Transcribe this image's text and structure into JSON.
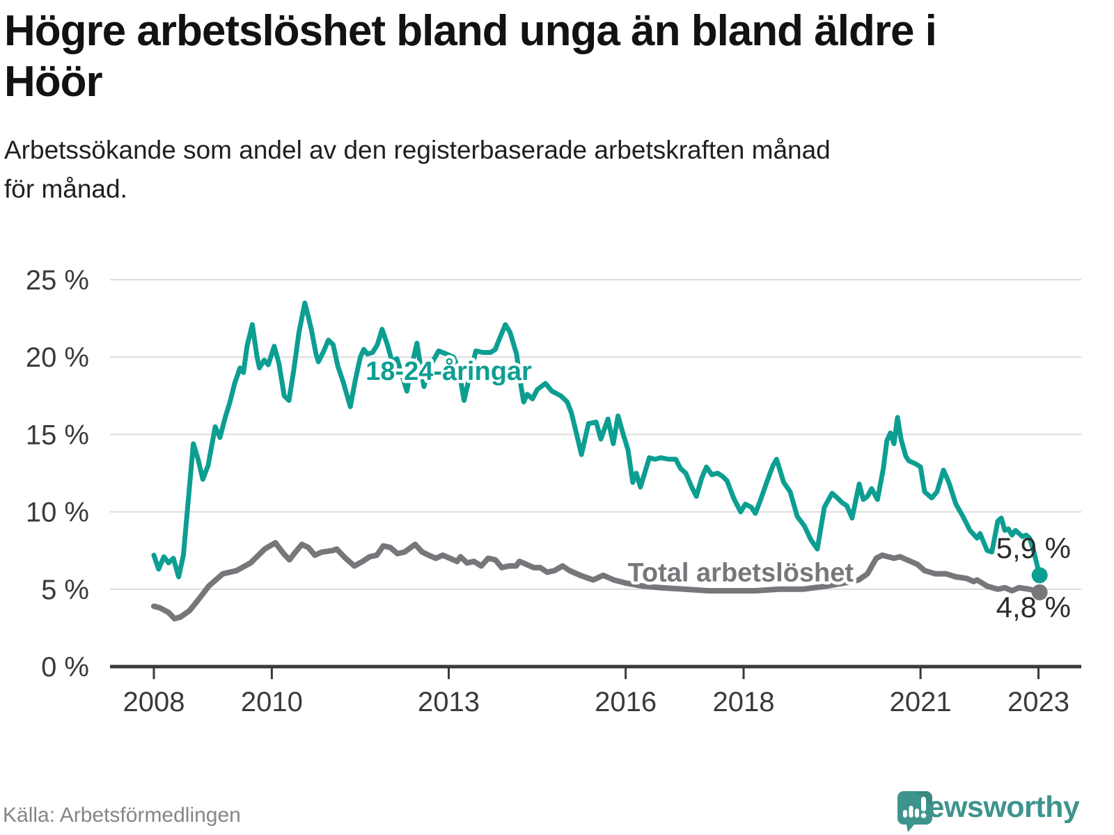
{
  "header": {
    "title_lines": [
      "Högre arbetslöshet bland unga än bland äldre i",
      "Höör"
    ],
    "subtitle_lines": [
      "Arbetssökande som andel av den registerbaserade arbetskraften månad",
      "för månad."
    ]
  },
  "footer": {
    "source": "Källa: Arbetsförmedlingen",
    "brand": "Newsworthy"
  },
  "colors": {
    "youth_line": "#0d9e92",
    "total_line": "#77777b",
    "axis": "#3a3a3a",
    "grid": "#dcdcdc",
    "value_label_text": "#2b2b2b",
    "brand_teal": "#3e938d"
  },
  "chart_data": {
    "type": "line",
    "title": "Högre arbetslöshet bland unga än bland äldre i Höör",
    "xlabel": "",
    "ylabel": "Arbetssökande som andel av den registerbaserade arbetskraften",
    "ylim": [
      0,
      25
    ],
    "xlim": [
      2007.25,
      2023.72
    ],
    "grid": "horizontal",
    "legend_position": "inline-labels",
    "y_ticks": [
      {
        "value": 0,
        "label": "0 %"
      },
      {
        "value": 5,
        "label": "5 %"
      },
      {
        "value": 10,
        "label": "10 %"
      },
      {
        "value": 15,
        "label": "15 %"
      },
      {
        "value": 20,
        "label": "20 %"
      },
      {
        "value": 25,
        "label": "25 %"
      }
    ],
    "x_ticks": [
      {
        "value": 2008,
        "label": "2008"
      },
      {
        "value": 2010,
        "label": "2010"
      },
      {
        "value": 2013,
        "label": "2013"
      },
      {
        "value": 2016,
        "label": "2016"
      },
      {
        "value": 2018,
        "label": "2018"
      },
      {
        "value": 2021,
        "label": "2021"
      },
      {
        "value": 2023,
        "label": "2023"
      }
    ],
    "series": [
      {
        "name": "18-24-åringar",
        "color": "#0d9e92",
        "stroke_width": 7,
        "end_label": "5,9 %",
        "last_value": 5.9,
        "label_pos": {
          "x": 2013.0,
          "y": 19.1
        },
        "points": [
          [
            2008.0,
            7.2
          ],
          [
            2008.08,
            6.3
          ],
          [
            2008.17,
            7.1
          ],
          [
            2008.25,
            6.7
          ],
          [
            2008.33,
            7.0
          ],
          [
            2008.42,
            5.8
          ],
          [
            2008.5,
            7.2
          ],
          [
            2008.58,
            10.6
          ],
          [
            2008.67,
            14.4
          ],
          [
            2008.75,
            13.4
          ],
          [
            2008.83,
            12.1
          ],
          [
            2008.92,
            13.0
          ],
          [
            2009.04,
            15.5
          ],
          [
            2009.12,
            14.8
          ],
          [
            2009.21,
            16.1
          ],
          [
            2009.29,
            17.1
          ],
          [
            2009.37,
            18.3
          ],
          [
            2009.46,
            19.3
          ],
          [
            2009.52,
            19.0
          ],
          [
            2009.58,
            20.7
          ],
          [
            2009.67,
            22.1
          ],
          [
            2009.75,
            20.0
          ],
          [
            2009.79,
            19.3
          ],
          [
            2009.87,
            19.8
          ],
          [
            2009.94,
            19.5
          ],
          [
            2010.04,
            20.7
          ],
          [
            2010.12,
            19.6
          ],
          [
            2010.21,
            17.5
          ],
          [
            2010.29,
            17.2
          ],
          [
            2010.37,
            19.1
          ],
          [
            2010.46,
            21.6
          ],
          [
            2010.56,
            23.5
          ],
          [
            2010.62,
            22.6
          ],
          [
            2010.67,
            21.8
          ],
          [
            2010.75,
            20.2
          ],
          [
            2010.79,
            19.7
          ],
          [
            2010.87,
            20.3
          ],
          [
            2010.96,
            21.1
          ],
          [
            2011.04,
            20.8
          ],
          [
            2011.12,
            19.4
          ],
          [
            2011.21,
            18.4
          ],
          [
            2011.33,
            16.8
          ],
          [
            2011.42,
            18.6
          ],
          [
            2011.5,
            20.0
          ],
          [
            2011.56,
            20.5
          ],
          [
            2011.62,
            20.2
          ],
          [
            2011.71,
            20.3
          ],
          [
            2011.79,
            20.8
          ],
          [
            2011.87,
            21.8
          ],
          [
            2011.96,
            20.8
          ],
          [
            2012.04,
            19.7
          ],
          [
            2012.12,
            19.9
          ],
          [
            2012.21,
            18.8
          ],
          [
            2012.29,
            17.8
          ],
          [
            2012.37,
            19.4
          ],
          [
            2012.46,
            20.9
          ],
          [
            2012.52,
            19.5
          ],
          [
            2012.58,
            18.1
          ],
          [
            2012.67,
            19.3
          ],
          [
            2012.71,
            19.6
          ],
          [
            2012.83,
            20.4
          ],
          [
            2012.96,
            20.2
          ],
          [
            2013.08,
            20.0
          ],
          [
            2013.17,
            19.2
          ],
          [
            2013.26,
            17.2
          ],
          [
            2013.37,
            19.0
          ],
          [
            2013.46,
            20.4
          ],
          [
            2013.58,
            20.3
          ],
          [
            2013.71,
            20.3
          ],
          [
            2013.79,
            20.5
          ],
          [
            2013.83,
            20.9
          ],
          [
            2013.96,
            22.1
          ],
          [
            2014.04,
            21.6
          ],
          [
            2014.15,
            20.2
          ],
          [
            2014.21,
            18.5
          ],
          [
            2014.27,
            17.1
          ],
          [
            2014.33,
            17.6
          ],
          [
            2014.42,
            17.3
          ],
          [
            2014.5,
            17.9
          ],
          [
            2014.64,
            18.3
          ],
          [
            2014.75,
            17.8
          ],
          [
            2014.9,
            17.5
          ],
          [
            2015.01,
            17.1
          ],
          [
            2015.08,
            16.4
          ],
          [
            2015.17,
            15.0
          ],
          [
            2015.25,
            13.7
          ],
          [
            2015.37,
            15.7
          ],
          [
            2015.5,
            15.8
          ],
          [
            2015.58,
            14.7
          ],
          [
            2015.7,
            16.0
          ],
          [
            2015.79,
            14.4
          ],
          [
            2015.87,
            16.2
          ],
          [
            2015.96,
            15.0
          ],
          [
            2016.04,
            14.0
          ],
          [
            2016.12,
            11.9
          ],
          [
            2016.18,
            12.5
          ],
          [
            2016.25,
            11.6
          ],
          [
            2016.33,
            12.6
          ],
          [
            2016.4,
            13.5
          ],
          [
            2016.5,
            13.4
          ],
          [
            2016.6,
            13.5
          ],
          [
            2016.73,
            13.4
          ],
          [
            2016.85,
            13.4
          ],
          [
            2016.93,
            12.8
          ],
          [
            2017.02,
            12.5
          ],
          [
            2017.12,
            11.6
          ],
          [
            2017.2,
            11.0
          ],
          [
            2017.29,
            12.2
          ],
          [
            2017.37,
            12.9
          ],
          [
            2017.46,
            12.4
          ],
          [
            2017.56,
            12.5
          ],
          [
            2017.64,
            12.3
          ],
          [
            2017.72,
            12.0
          ],
          [
            2017.83,
            10.9
          ],
          [
            2017.95,
            10.0
          ],
          [
            2018.03,
            10.5
          ],
          [
            2018.13,
            10.3
          ],
          [
            2018.2,
            9.9
          ],
          [
            2018.29,
            10.8
          ],
          [
            2018.4,
            12.0
          ],
          [
            2018.5,
            13.0
          ],
          [
            2018.56,
            13.4
          ],
          [
            2018.68,
            11.9
          ],
          [
            2018.79,
            11.3
          ],
          [
            2018.91,
            9.7
          ],
          [
            2019.03,
            9.1
          ],
          [
            2019.14,
            8.2
          ],
          [
            2019.25,
            7.6
          ],
          [
            2019.37,
            10.3
          ],
          [
            2019.5,
            11.2
          ],
          [
            2019.59,
            10.9
          ],
          [
            2019.67,
            10.6
          ],
          [
            2019.75,
            10.4
          ],
          [
            2019.84,
            9.6
          ],
          [
            2019.96,
            11.8
          ],
          [
            2020.03,
            10.8
          ],
          [
            2020.1,
            11.0
          ],
          [
            2020.17,
            11.5
          ],
          [
            2020.27,
            10.8
          ],
          [
            2020.37,
            12.8
          ],
          [
            2020.43,
            14.6
          ],
          [
            2020.49,
            15.1
          ],
          [
            2020.55,
            14.4
          ],
          [
            2020.61,
            16.1
          ],
          [
            2020.67,
            14.7
          ],
          [
            2020.75,
            13.6
          ],
          [
            2020.8,
            13.3
          ],
          [
            2020.92,
            13.1
          ],
          [
            2021.0,
            12.9
          ],
          [
            2021.07,
            11.3
          ],
          [
            2021.19,
            10.9
          ],
          [
            2021.28,
            11.3
          ],
          [
            2021.39,
            12.7
          ],
          [
            2021.48,
            11.9
          ],
          [
            2021.6,
            10.5
          ],
          [
            2021.72,
            9.7
          ],
          [
            2021.84,
            8.8
          ],
          [
            2021.96,
            8.3
          ],
          [
            2022.01,
            8.6
          ],
          [
            2022.13,
            7.5
          ],
          [
            2022.21,
            7.4
          ],
          [
            2022.31,
            9.4
          ],
          [
            2022.37,
            9.6
          ],
          [
            2022.43,
            8.8
          ],
          [
            2022.49,
            8.9
          ],
          [
            2022.55,
            8.5
          ],
          [
            2022.61,
            8.8
          ],
          [
            2022.73,
            8.4
          ],
          [
            2022.79,
            8.5
          ],
          [
            2022.85,
            8.3
          ],
          [
            2022.91,
            7.6
          ],
          [
            2023.02,
            5.9
          ]
        ]
      },
      {
        "name": "Total arbetslöshet",
        "color": "#77777b",
        "stroke_width": 8,
        "end_label": "4,8 %",
        "last_value": 4.8,
        "label_pos": {
          "x": 2017.95,
          "y": 6.1
        },
        "points": [
          [
            2008.0,
            3.9
          ],
          [
            2008.1,
            3.8
          ],
          [
            2008.25,
            3.5
          ],
          [
            2008.35,
            3.1
          ],
          [
            2008.45,
            3.2
          ],
          [
            2008.6,
            3.6
          ],
          [
            2008.73,
            4.2
          ],
          [
            2008.93,
            5.2
          ],
          [
            2009.05,
            5.6
          ],
          [
            2009.17,
            6.0
          ],
          [
            2009.4,
            6.2
          ],
          [
            2009.64,
            6.7
          ],
          [
            2009.88,
            7.6
          ],
          [
            2010.06,
            8.0
          ],
          [
            2010.2,
            7.3
          ],
          [
            2010.3,
            6.9
          ],
          [
            2010.4,
            7.4
          ],
          [
            2010.51,
            7.9
          ],
          [
            2010.62,
            7.7
          ],
          [
            2010.73,
            7.2
          ],
          [
            2010.85,
            7.4
          ],
          [
            2011.03,
            7.5
          ],
          [
            2011.1,
            7.6
          ],
          [
            2011.25,
            7.0
          ],
          [
            2011.4,
            6.5
          ],
          [
            2011.54,
            6.8
          ],
          [
            2011.66,
            7.1
          ],
          [
            2011.78,
            7.2
          ],
          [
            2011.89,
            7.8
          ],
          [
            2012.01,
            7.7
          ],
          [
            2012.13,
            7.3
          ],
          [
            2012.25,
            7.4
          ],
          [
            2012.43,
            7.9
          ],
          [
            2012.55,
            7.4
          ],
          [
            2012.66,
            7.2
          ],
          [
            2012.78,
            7.0
          ],
          [
            2012.9,
            7.2
          ],
          [
            2013.02,
            7.0
          ],
          [
            2013.14,
            6.8
          ],
          [
            2013.2,
            7.1
          ],
          [
            2013.31,
            6.7
          ],
          [
            2013.43,
            6.8
          ],
          [
            2013.55,
            6.5
          ],
          [
            2013.67,
            7.0
          ],
          [
            2013.79,
            6.9
          ],
          [
            2013.9,
            6.4
          ],
          [
            2014.02,
            6.5
          ],
          [
            2014.14,
            6.5
          ],
          [
            2014.2,
            6.8
          ],
          [
            2014.32,
            6.6
          ],
          [
            2014.44,
            6.4
          ],
          [
            2014.55,
            6.4
          ],
          [
            2014.67,
            6.1
          ],
          [
            2014.79,
            6.2
          ],
          [
            2014.93,
            6.5
          ],
          [
            2015.05,
            6.2
          ],
          [
            2015.23,
            5.9
          ],
          [
            2015.45,
            5.6
          ],
          [
            2015.62,
            5.9
          ],
          [
            2015.8,
            5.6
          ],
          [
            2016.0,
            5.4
          ],
          [
            2016.3,
            5.2
          ],
          [
            2016.6,
            5.1
          ],
          [
            2017.0,
            5.0
          ],
          [
            2017.4,
            4.9
          ],
          [
            2017.8,
            4.9
          ],
          [
            2018.2,
            4.9
          ],
          [
            2018.6,
            5.0
          ],
          [
            2019.0,
            5.0
          ],
          [
            2019.4,
            5.2
          ],
          [
            2019.7,
            5.4
          ],
          [
            2019.95,
            5.6
          ],
          [
            2020.1,
            6.0
          ],
          [
            2020.25,
            7.0
          ],
          [
            2020.35,
            7.2
          ],
          [
            2020.55,
            7.0
          ],
          [
            2020.65,
            7.1
          ],
          [
            2020.77,
            6.9
          ],
          [
            2020.95,
            6.6
          ],
          [
            2021.07,
            6.2
          ],
          [
            2021.25,
            6.0
          ],
          [
            2021.43,
            6.0
          ],
          [
            2021.6,
            5.8
          ],
          [
            2021.78,
            5.7
          ],
          [
            2021.9,
            5.5
          ],
          [
            2021.96,
            5.6
          ],
          [
            2022.13,
            5.2
          ],
          [
            2022.31,
            5.0
          ],
          [
            2022.43,
            5.1
          ],
          [
            2022.55,
            4.9
          ],
          [
            2022.67,
            5.1
          ],
          [
            2022.85,
            5.0
          ],
          [
            2023.02,
            4.8
          ]
        ]
      }
    ]
  }
}
